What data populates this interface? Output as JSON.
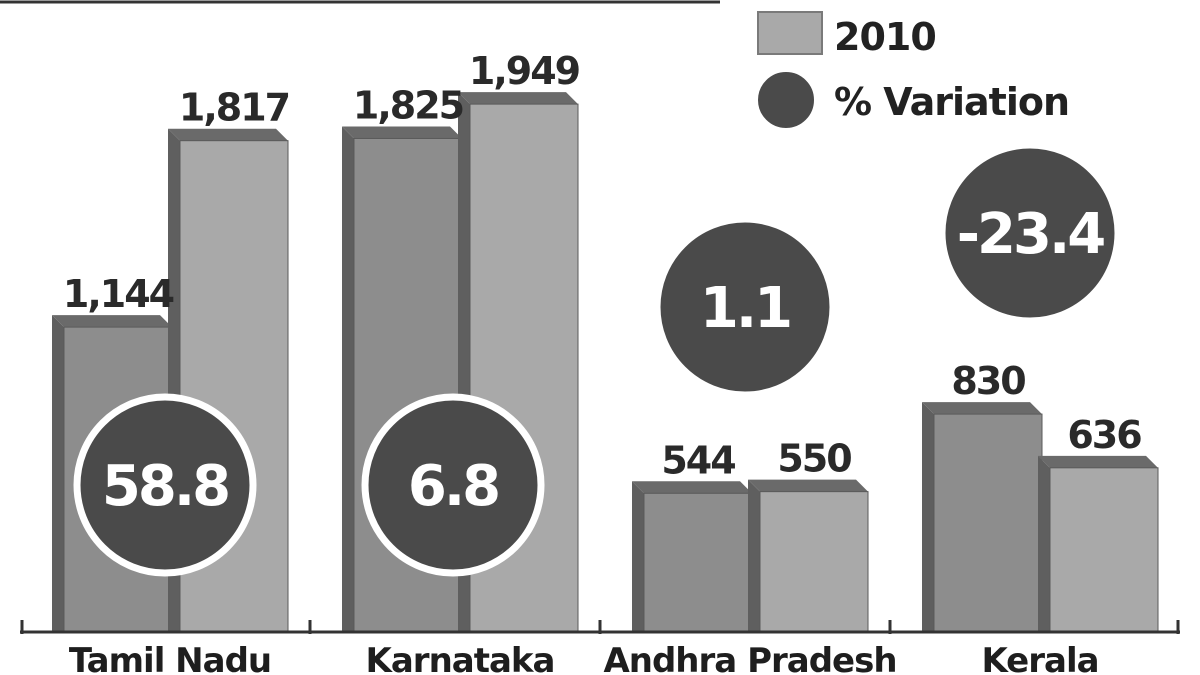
{
  "chart_data": {
    "type": "bar",
    "categories": [
      "Tamil Nadu",
      "Karnataka",
      "Andhra Pradesh",
      "Kerala"
    ],
    "series": [
      {
        "values": [
          1144,
          1825,
          544,
          830
        ]
      },
      {
        "name": "2010",
        "values": [
          1817,
          1949,
          550,
          636
        ]
      }
    ],
    "value_labels": [
      [
        "1,144",
        "1,817"
      ],
      [
        "1,825",
        "1,949"
      ],
      [
        "544",
        "550"
      ],
      [
        "830",
        "636"
      ]
    ],
    "variation": {
      "name": "% Variation",
      "values": [
        58.8,
        6.8,
        1.1,
        -23.4
      ],
      "labels": [
        "58.8",
        "6.8",
        "1.1",
        "-23.4"
      ]
    },
    "legend": {
      "placement": "top-right",
      "items": [
        "2010",
        "% Variation"
      ]
    },
    "ylim": [
      0,
      2100
    ],
    "grid": false,
    "colors": {
      "bar_front_a": "#8d8d8d",
      "bar_front_b": "#a9a9a9",
      "bar_top": "#6a6a6a",
      "bar_side": "#5f5f5f",
      "circle": "#4a4a4a",
      "axis": "#333333"
    }
  }
}
